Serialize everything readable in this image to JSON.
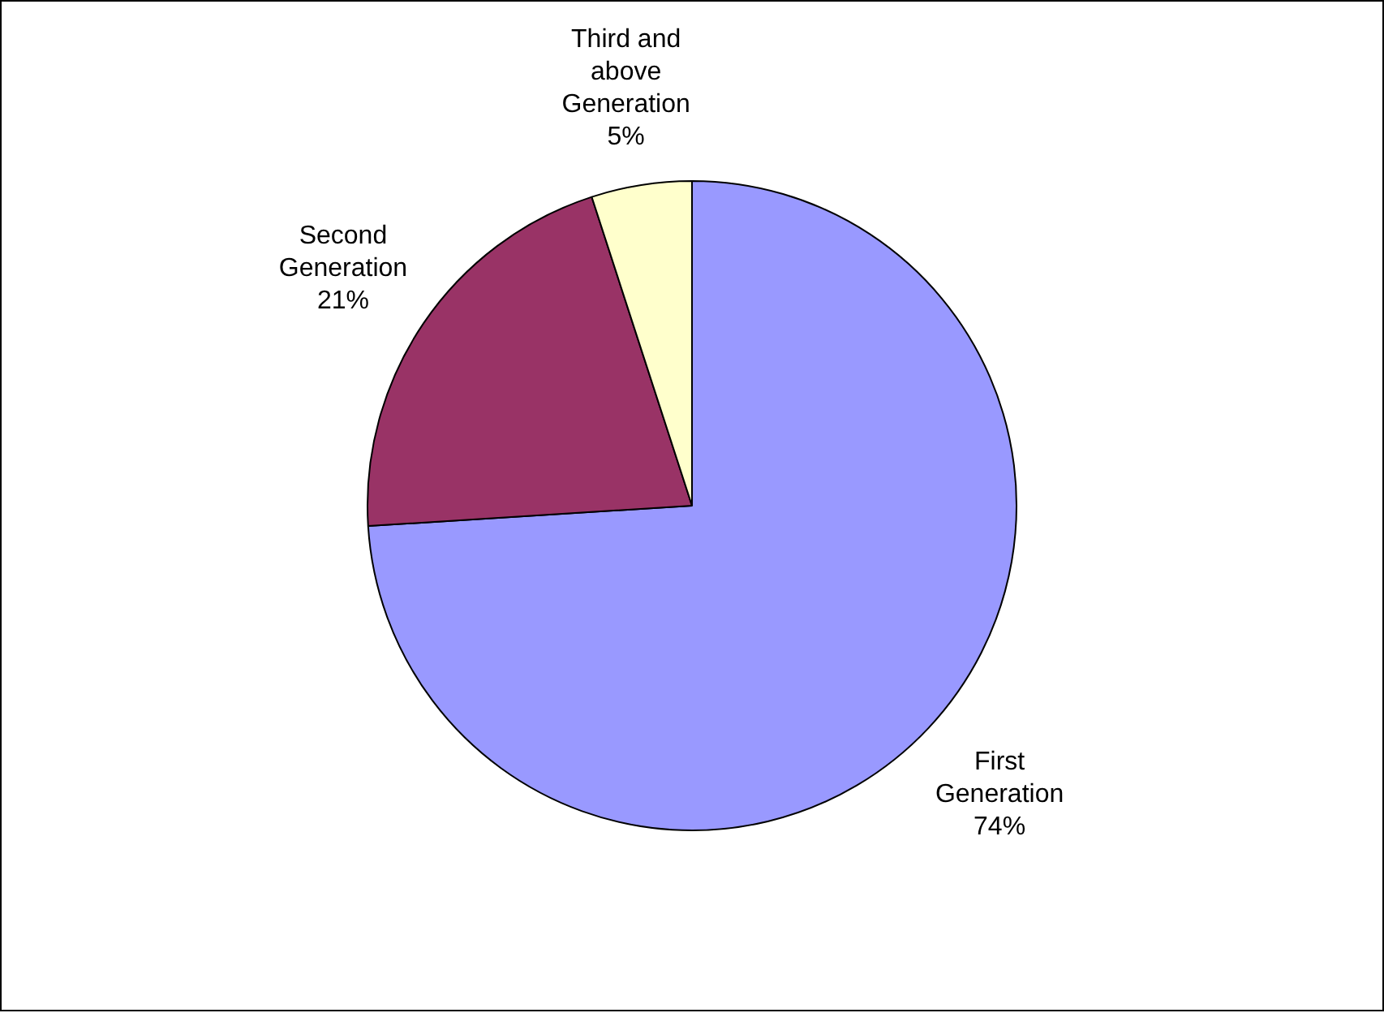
{
  "chart_data": {
    "type": "pie",
    "categories": [
      "First Generation",
      "Second Generation",
      "Third and above Generation"
    ],
    "values": [
      74,
      21,
      5
    ],
    "colors": [
      "#9999ff",
      "#993366",
      "#ffffcc"
    ],
    "value_labels": [
      "74%",
      "21%",
      "5%"
    ],
    "legend": false
  }
}
